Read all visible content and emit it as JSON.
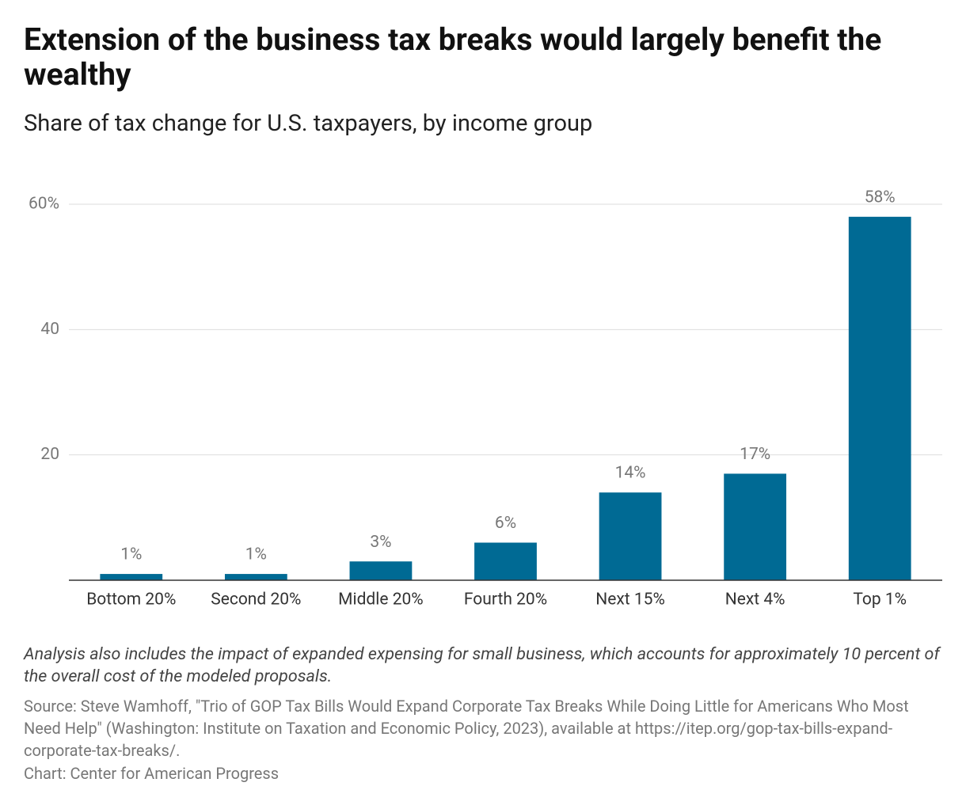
{
  "chart_data": {
    "type": "bar",
    "title": "Extension of the business tax breaks would largely benefit the wealthy",
    "subtitle": "Share of tax change for U.S. taxpayers, by income group",
    "categories": [
      "Bottom 20%",
      "Second 20%",
      "Middle 20%",
      "Fourth 20%",
      "Next 15%",
      "Next 4%",
      "Top 1%"
    ],
    "values": [
      1,
      1,
      3,
      6,
      14,
      17,
      58
    ],
    "value_labels": [
      "1%",
      "1%",
      "3%",
      "6%",
      "14%",
      "17%",
      "58%"
    ],
    "color": "#006a94",
    "ylim": [
      0,
      60
    ],
    "yticks": [
      20,
      40,
      {
        "value": 60,
        "label": "60%"
      }
    ],
    "grid": true,
    "note": "Analysis also includes the impact of expanded expensing for small business, which accounts for approximately 10 percent of the overall cost of the modeled proposals.",
    "source": "Source: Steve Wamhoff, \"Trio of GOP Tax Bills Would Expand Corporate Tax Breaks While Doing Little for Americans Who Most Need Help\" (Washington: Institute on Taxation and Economic Policy, 2023), available at https://itep.org/gop-tax-bills-expand-corporate-tax-breaks/.",
    "credit": "Chart: Center for American Progress"
  }
}
